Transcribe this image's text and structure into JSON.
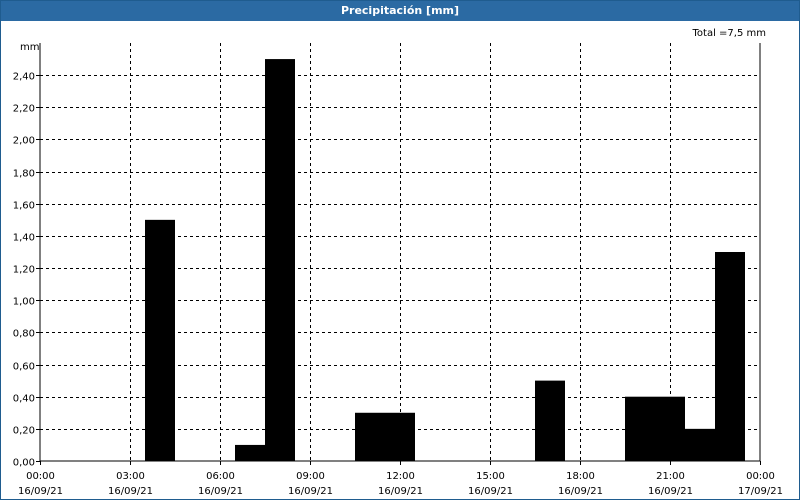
{
  "window": {
    "title": "Precipitación [mm]"
  },
  "chart_data": {
    "type": "bar",
    "title": "Precipitación [mm]",
    "ylabel": "mm",
    "total_label": "Total =7,5 mm",
    "ylim": [
      0,
      2.6
    ],
    "yticks": [
      "0,00",
      "0,20",
      "0,40",
      "0,60",
      "0,80",
      "1,00",
      "1,20",
      "1,40",
      "1,60",
      "1,80",
      "2,00",
      "2,20",
      "2,40"
    ],
    "xlim": [
      "16/09/21 00:00",
      "17/09/21 00:00"
    ],
    "xticks": [
      {
        "time": "00:00",
        "date": "16/09/21"
      },
      {
        "time": "03:00",
        "date": "16/09/21"
      },
      {
        "time": "06:00",
        "date": "16/09/21"
      },
      {
        "time": "09:00",
        "date": "16/09/21"
      },
      {
        "time": "12:00",
        "date": "16/09/21"
      },
      {
        "time": "15:00",
        "date": "16/09/21"
      },
      {
        "time": "18:00",
        "date": "16/09/21"
      },
      {
        "time": "21:00",
        "date": "16/09/21"
      },
      {
        "time": "00:00",
        "date": "17/09/21"
      }
    ],
    "bar_width_hours": 1,
    "bars": [
      {
        "x": "16/09/21 04:00",
        "value": 1.5
      },
      {
        "x": "16/09/21 07:00",
        "value": 0.1
      },
      {
        "x": "16/09/21 08:00",
        "value": 2.5
      },
      {
        "x": "16/09/21 11:00",
        "value": 0.3
      },
      {
        "x": "16/09/21 12:00",
        "value": 0.3
      },
      {
        "x": "16/09/21 17:00",
        "value": 0.5
      },
      {
        "x": "16/09/21 20:00",
        "value": 0.4
      },
      {
        "x": "16/09/21 21:00",
        "value": 0.4
      },
      {
        "x": "16/09/21 22:00",
        "value": 0.2
      },
      {
        "x": "16/09/21 23:00",
        "value": 1.3
      }
    ],
    "grid": true,
    "colors": {
      "bar": "#000000",
      "title_bar": "#2b6aa3",
      "grid": "#000000"
    }
  }
}
